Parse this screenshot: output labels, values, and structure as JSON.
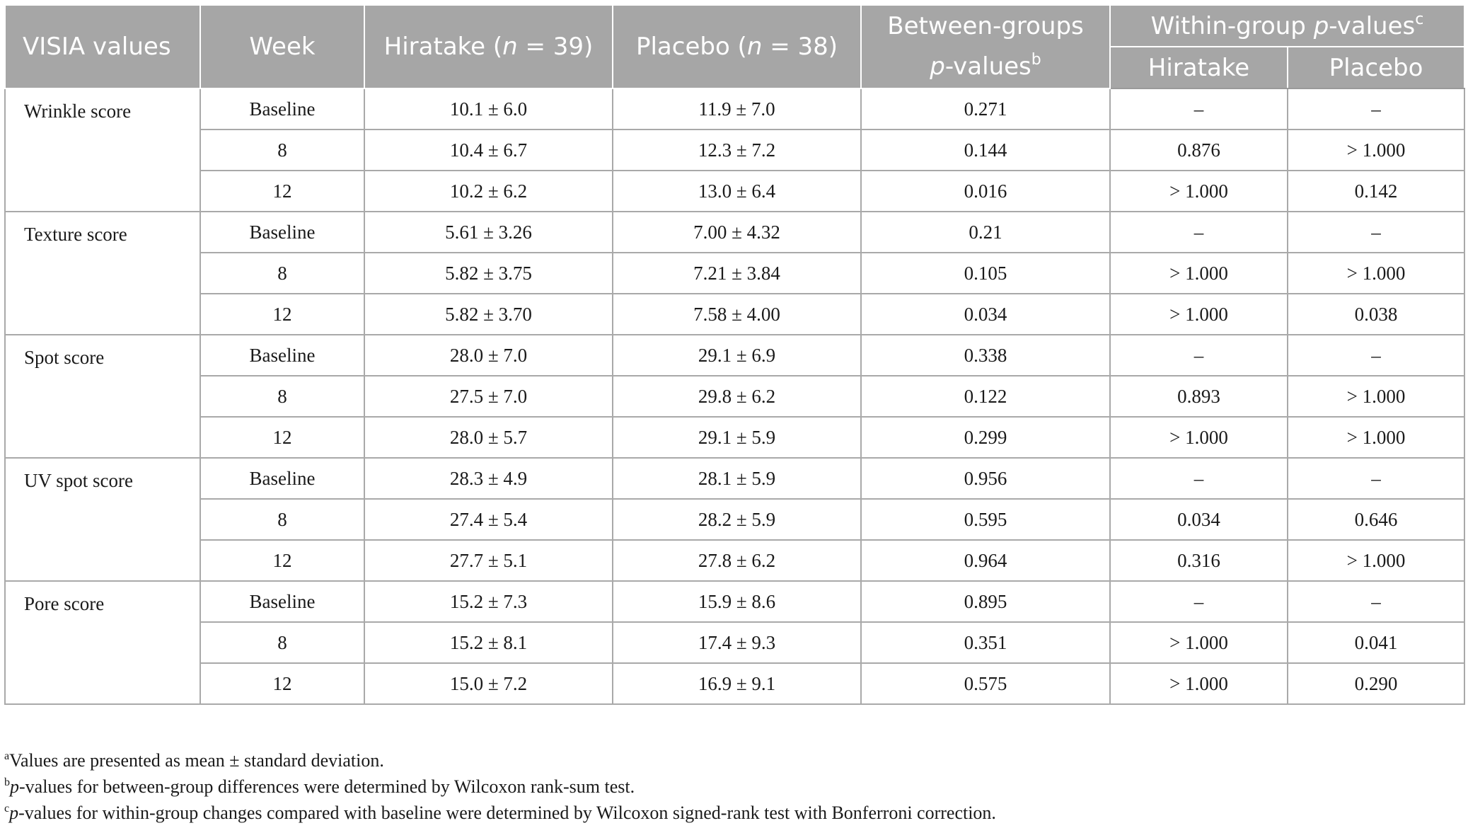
{
  "table": {
    "headers": {
      "variable": "VISIA values",
      "week": "Week",
      "hiratake_name": "Hiratake (",
      "hiratake_n_symbol": "n",
      "hiratake_n_value": " = 39)",
      "placebo_name": "Placebo (",
      "placebo_n_symbol": "n",
      "placebo_n_value": " = 38)",
      "between_line1": "Between-groups",
      "between_p": "p",
      "between_suffix": "-values",
      "between_mark": "b",
      "within_prefix": "Within-group ",
      "within_p": "p",
      "within_suffix": "-values",
      "within_mark": "c",
      "sub_hiratake": "Hiratake",
      "sub_placebo": "Placebo"
    },
    "groups": [
      {
        "name": "Wrinkle score",
        "rows": [
          {
            "week": "Baseline",
            "hiratake": "10.1 ± 6.0",
            "placebo": "11.9 ± 7.0",
            "between_p": "0.271",
            "within_hiratake": "–",
            "within_placebo": "–"
          },
          {
            "week": "8",
            "hiratake": "10.4 ± 6.7",
            "placebo": "12.3 ± 7.2",
            "between_p": "0.144",
            "within_hiratake": "0.876",
            "within_placebo": "> 1.000"
          },
          {
            "week": "12",
            "hiratake": "10.2 ± 6.2",
            "placebo": "13.0 ± 6.4",
            "between_p": "0.016",
            "within_hiratake": "> 1.000",
            "within_placebo": "0.142"
          }
        ]
      },
      {
        "name": "Texture score",
        "rows": [
          {
            "week": "Baseline",
            "hiratake": "5.61 ± 3.26",
            "placebo": "7.00 ± 4.32",
            "between_p": "0.21",
            "within_hiratake": "–",
            "within_placebo": "–"
          },
          {
            "week": "8",
            "hiratake": "5.82 ± 3.75",
            "placebo": "7.21 ± 3.84",
            "between_p": "0.105",
            "within_hiratake": "> 1.000",
            "within_placebo": "> 1.000"
          },
          {
            "week": "12",
            "hiratake": "5.82 ± 3.70",
            "placebo": "7.58 ± 4.00",
            "between_p": "0.034",
            "within_hiratake": "> 1.000",
            "within_placebo": "0.038"
          }
        ]
      },
      {
        "name": "Spot score",
        "rows": [
          {
            "week": "Baseline",
            "hiratake": "28.0 ± 7.0",
            "placebo": "29.1 ± 6.9",
            "between_p": "0.338",
            "within_hiratake": "–",
            "within_placebo": "–"
          },
          {
            "week": "8",
            "hiratake": "27.5 ± 7.0",
            "placebo": "29.8 ± 6.2",
            "between_p": "0.122",
            "within_hiratake": "0.893",
            "within_placebo": "> 1.000"
          },
          {
            "week": "12",
            "hiratake": "28.0 ± 5.7",
            "placebo": "29.1 ± 5.9",
            "between_p": "0.299",
            "within_hiratake": "> 1.000",
            "within_placebo": "> 1.000"
          }
        ]
      },
      {
        "name": "UV spot score",
        "rows": [
          {
            "week": "Baseline",
            "hiratake": "28.3 ± 4.9",
            "placebo": "28.1 ± 5.9",
            "between_p": "0.956",
            "within_hiratake": "–",
            "within_placebo": "–"
          },
          {
            "week": "8",
            "hiratake": "27.4 ± 5.4",
            "placebo": "28.2 ± 5.9",
            "between_p": "0.595",
            "within_hiratake": "0.034",
            "within_placebo": "0.646"
          },
          {
            "week": "12",
            "hiratake": "27.7 ± 5.1",
            "placebo": "27.8 ± 6.2",
            "between_p": "0.964",
            "within_hiratake": "0.316",
            "within_placebo": "> 1.000"
          }
        ]
      },
      {
        "name": "Pore score",
        "rows": [
          {
            "week": "Baseline",
            "hiratake": "15.2 ± 7.3",
            "placebo": "15.9 ± 8.6",
            "between_p": "0.895",
            "within_hiratake": "–",
            "within_placebo": "–"
          },
          {
            "week": "8",
            "hiratake": "15.2 ± 8.1",
            "placebo": "17.4 ± 9.3",
            "between_p": "0.351",
            "within_hiratake": "> 1.000",
            "within_placebo": "0.041"
          },
          {
            "week": "12",
            "hiratake": "15.0 ± 7.2",
            "placebo": "16.9 ± 9.1",
            "between_p": "0.575",
            "within_hiratake": "> 1.000",
            "within_placebo": "0.290"
          }
        ]
      }
    ]
  },
  "footnotes": [
    {
      "mark": "a",
      "italic": "",
      "text": "Values are presented as mean ± standard deviation."
    },
    {
      "mark": "b",
      "italic": "p",
      "text": "-values for between-group differences were determined by Wilcoxon rank-sum test."
    },
    {
      "mark": "c",
      "italic": "p",
      "text": "-values for within-group changes compared with baseline were determined by Wilcoxon signed-rank test with Bonferroni correction."
    }
  ],
  "colors": {
    "header_background": "#a6a6a6",
    "header_text": "#ffffff",
    "grid_lines": "#a9a9a9",
    "body_text": "#1a1a1a"
  }
}
